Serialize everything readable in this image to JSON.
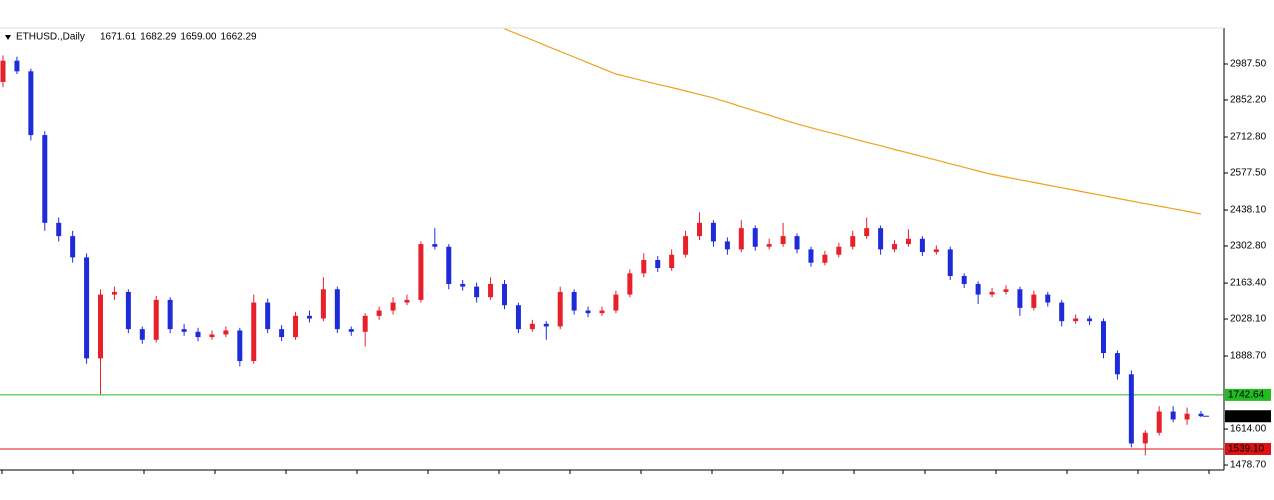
{
  "chart_data": {
    "type": "candlestick",
    "title": "ETHUSD.,Daily",
    "last_value_labels": [
      "1671.61",
      "1682.29",
      "1659.00",
      "1662.29"
    ],
    "bull_color": "#e8202a",
    "bear_color": "#1e2bd8",
    "ylim": [
      1460,
      3123
    ],
    "yticks": [
      {
        "value": 2987.5,
        "label": "2987.50"
      },
      {
        "value": 2852.2,
        "label": "2852.20"
      },
      {
        "value": 2712.8,
        "label": "2712.80"
      },
      {
        "value": 2577.5,
        "label": "2577.50"
      },
      {
        "value": 2438.1,
        "label": "2438.10"
      },
      {
        "value": 2302.8,
        "label": "2302.80"
      },
      {
        "value": 2163.4,
        "label": "2163.40"
      },
      {
        "value": 2028.1,
        "label": "2028.10"
      },
      {
        "value": 1888.7,
        "label": "1888.70"
      },
      {
        "value": 1614,
        "label": "1614.00"
      },
      {
        "value": 1478.7,
        "label": "1478.70"
      }
    ],
    "levels": [
      {
        "value": 1742.64,
        "label": "1742.64",
        "color": "#22bb22"
      },
      {
        "value": 1539.1,
        "label": "1539.10",
        "color": "#dd1111"
      }
    ],
    "ohlc": [
      [
        2920,
        3020,
        2900,
        3000
      ],
      [
        3000,
        3015,
        2950,
        2960
      ],
      [
        2960,
        2970,
        2700,
        2720
      ],
      [
        2720,
        2735,
        2360,
        2390
      ],
      [
        2390,
        2410,
        2320,
        2340
      ],
      [
        2340,
        2360,
        2240,
        2260
      ],
      [
        2260,
        2275,
        1860,
        1880
      ],
      [
        1880,
        2140,
        1745,
        2120
      ],
      [
        2120,
        2150,
        2100,
        2130
      ],
      [
        2130,
        2140,
        1975,
        1990
      ],
      [
        1990,
        2000,
        1935,
        1950
      ],
      [
        1950,
        2115,
        1940,
        2100
      ],
      [
        2100,
        2110,
        1975,
        1990
      ],
      [
        1990,
        2010,
        1965,
        1980
      ],
      [
        1980,
        1995,
        1945,
        1960
      ],
      [
        1960,
        1985,
        1950,
        1970
      ],
      [
        1970,
        2000,
        1960,
        1985
      ],
      [
        1985,
        1995,
        1850,
        1870
      ],
      [
        1870,
        2120,
        1860,
        2090
      ],
      [
        2090,
        2105,
        1975,
        1990
      ],
      [
        1990,
        2005,
        1945,
        1960
      ],
      [
        1960,
        2055,
        1950,
        2040
      ],
      [
        2040,
        2060,
        2015,
        2030
      ],
      [
        2030,
        2185,
        2020,
        2140
      ],
      [
        2140,
        2150,
        1975,
        1990
      ],
      [
        1990,
        2000,
        1965,
        1980
      ],
      [
        1980,
        2050,
        1925,
        2040
      ],
      [
        2040,
        2075,
        2025,
        2060
      ],
      [
        2060,
        2110,
        2045,
        2090
      ],
      [
        2090,
        2120,
        2080,
        2100
      ],
      [
        2100,
        2320,
        2090,
        2310
      ],
      [
        2310,
        2370,
        2290,
        2300
      ],
      [
        2300,
        2310,
        2140,
        2160
      ],
      [
        2160,
        2175,
        2135,
        2150
      ],
      [
        2150,
        2165,
        2090,
        2110
      ],
      [
        2110,
        2185,
        2100,
        2160
      ],
      [
        2160,
        2175,
        2065,
        2080
      ],
      [
        2080,
        2090,
        1975,
        1990
      ],
      [
        1990,
        2025,
        1980,
        2010
      ],
      [
        2010,
        2020,
        1950,
        2000
      ],
      [
        2000,
        2150,
        1990,
        2130
      ],
      [
        2130,
        2140,
        2045,
        2060
      ],
      [
        2060,
        2075,
        2035,
        2050
      ],
      [
        2050,
        2075,
        2040,
        2060
      ],
      [
        2060,
        2135,
        2050,
        2120
      ],
      [
        2120,
        2215,
        2110,
        2200
      ],
      [
        2200,
        2275,
        2185,
        2250
      ],
      [
        2250,
        2265,
        2205,
        2220
      ],
      [
        2220,
        2290,
        2210,
        2270
      ],
      [
        2270,
        2360,
        2260,
        2340
      ],
      [
        2340,
        2430,
        2325,
        2390
      ],
      [
        2390,
        2400,
        2300,
        2320
      ],
      [
        2320,
        2335,
        2270,
        2290
      ],
      [
        2290,
        2400,
        2280,
        2370
      ],
      [
        2370,
        2380,
        2285,
        2300
      ],
      [
        2300,
        2330,
        2290,
        2310
      ],
      [
        2310,
        2390,
        2300,
        2340
      ],
      [
        2340,
        2350,
        2275,
        2290
      ],
      [
        2290,
        2300,
        2225,
        2240
      ],
      [
        2240,
        2285,
        2230,
        2270
      ],
      [
        2270,
        2315,
        2260,
        2300
      ],
      [
        2300,
        2360,
        2290,
        2340
      ],
      [
        2340,
        2410,
        2330,
        2370
      ],
      [
        2370,
        2380,
        2270,
        2290
      ],
      [
        2290,
        2325,
        2280,
        2310
      ],
      [
        2310,
        2365,
        2300,
        2330
      ],
      [
        2330,
        2340,
        2265,
        2280
      ],
      [
        2280,
        2305,
        2270,
        2290
      ],
      [
        2290,
        2300,
        2175,
        2190
      ],
      [
        2190,
        2200,
        2145,
        2160
      ],
      [
        2160,
        2170,
        2085,
        2120
      ],
      [
        2120,
        2145,
        2110,
        2130
      ],
      [
        2130,
        2155,
        2120,
        2140
      ],
      [
        2140,
        2150,
        2040,
        2070
      ],
      [
        2070,
        2135,
        2060,
        2120
      ],
      [
        2120,
        2130,
        2075,
        2090
      ],
      [
        2090,
        2100,
        2000,
        2020
      ],
      [
        2020,
        2045,
        2010,
        2030
      ],
      [
        2030,
        2040,
        2005,
        2020
      ],
      [
        2020,
        2030,
        1880,
        1900
      ],
      [
        1900,
        1910,
        1800,
        1820
      ],
      [
        1820,
        1835,
        1545,
        1560
      ],
      [
        1560,
        1610,
        1515,
        1600
      ],
      [
        1600,
        1700,
        1590,
        1680
      ],
      [
        1680,
        1700,
        1640,
        1650
      ],
      [
        1650,
        1695,
        1630,
        1671.61
      ],
      [
        1671.61,
        1682.29,
        1659.0,
        1662.29
      ]
    ],
    "ma": {
      "color": "#f0a020",
      "values": [
        null,
        null,
        null,
        null,
        null,
        null,
        null,
        null,
        null,
        null,
        null,
        null,
        null,
        null,
        null,
        null,
        null,
        null,
        null,
        null,
        null,
        null,
        null,
        null,
        null,
        null,
        null,
        null,
        null,
        null,
        null,
        null,
        null,
        null,
        null,
        null,
        3120,
        3099,
        3078,
        3056,
        3035,
        3014,
        2992,
        2971,
        2950,
        2937,
        2924,
        2911,
        2899,
        2886,
        2873,
        2860,
        2844,
        2827,
        2811,
        2795,
        2778,
        2762,
        2748,
        2734,
        2721,
        2707,
        2693,
        2680,
        2666,
        2653,
        2639,
        2626,
        2612,
        2599,
        2585,
        2572,
        2562,
        2552,
        2542,
        2532,
        2522,
        2512,
        2502,
        2492,
        2482,
        2472,
        2462,
        2453,
        2443,
        2433,
        2423
      ]
    }
  }
}
